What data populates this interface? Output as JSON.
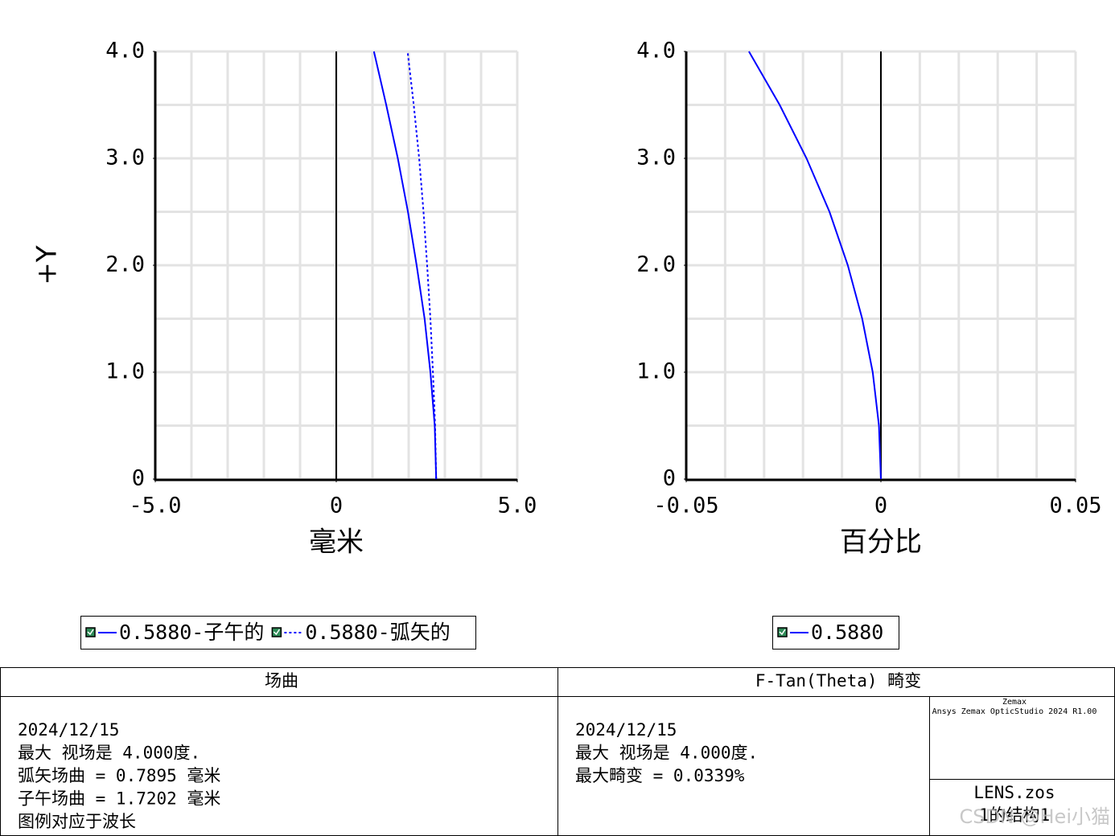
{
  "chart_data": [
    {
      "type": "line",
      "x_label": "毫米",
      "y_label": "+Y",
      "y": [
        0,
        0.5,
        1,
        1.5,
        2,
        2.5,
        3,
        3.5,
        4
      ],
      "xlim": [
        -5,
        5
      ],
      "ylim": [
        0,
        4
      ],
      "xticks": [
        {
          "value": -5,
          "label": "-5.0"
        },
        0,
        {
          "value": 5,
          "label": "5.0"
        }
      ],
      "yticks": [
        0,
        {
          "value": 1,
          "label": "1.0"
        },
        {
          "value": 2,
          "label": "2.0"
        },
        {
          "value": 3,
          "label": "3.0"
        },
        {
          "value": 4,
          "label": "4.0"
        }
      ],
      "x_grid": [
        -5,
        -4,
        -3,
        -2,
        -1,
        0,
        1,
        2,
        3,
        4,
        5
      ],
      "y_grid": [
        0,
        0.5,
        1,
        1.5,
        2,
        2.5,
        3,
        3.5,
        4
      ],
      "series": [
        {
          "name": "0.5880-子午的",
          "color": "#0000ff",
          "dash": "solid",
          "values": [
            2.76,
            2.72,
            2.6,
            2.44,
            2.22,
            1.98,
            1.7,
            1.38,
            1.04
          ]
        },
        {
          "name": "0.5880-弧矢的",
          "color": "#0000ff",
          "dash": "dotted",
          "values": [
            2.76,
            2.73,
            2.67,
            2.6,
            2.51,
            2.41,
            2.29,
            2.14,
            1.97
          ]
        }
      ]
    },
    {
      "type": "line",
      "x_label": "百分比",
      "y": [
        0,
        0.5,
        1,
        1.5,
        2,
        2.5,
        3,
        3.5,
        4
      ],
      "xlim": [
        -0.05,
        0.05
      ],
      "ylim": [
        0,
        4
      ],
      "xticks": [
        -0.05,
        0,
        0.05
      ],
      "yticks": [
        0,
        {
          "value": 1,
          "label": "1.0"
        },
        {
          "value": 2,
          "label": "2.0"
        },
        {
          "value": 3,
          "label": "3.0"
        },
        {
          "value": 4,
          "label": "4.0"
        }
      ],
      "x_grid": [
        -0.05,
        -0.04,
        -0.03,
        -0.02,
        -0.01,
        0,
        0.01,
        0.02,
        0.03,
        0.04,
        0.05
      ],
      "y_grid": [
        0,
        0.5,
        1,
        1.5,
        2,
        2.5,
        3,
        3.5,
        4
      ],
      "series": [
        {
          "name": "0.5880",
          "color": "#0000ff",
          "dash": "solid",
          "values": [
            0,
            -0.0005,
            -0.0021,
            -0.0048,
            -0.0085,
            -0.0132,
            -0.0191,
            -0.026,
            -0.0339
          ]
        }
      ]
    }
  ],
  "footer": {
    "left": {
      "title": "场曲",
      "lines": [
        "2024/12/15",
        "最大 视场是 4.000度.",
        "弧矢场曲 = 0.7895 毫米",
        "子午场曲 = 1.7202 毫米",
        "图例对应于波长"
      ]
    },
    "right": {
      "title": "F-Tan(Theta) 畸变",
      "lines": [
        "2024/12/15",
        "最大 视场是 4.000度.",
        "最大畸变 = 0.0339%"
      ]
    },
    "info": {
      "company": "Zemax",
      "product": "Ansys Zemax OpticStudio 2024 R1.00",
      "file": "LENS.zos",
      "config": "1的结构1"
    },
    "watermark": "CSDN @Hei小猫"
  }
}
